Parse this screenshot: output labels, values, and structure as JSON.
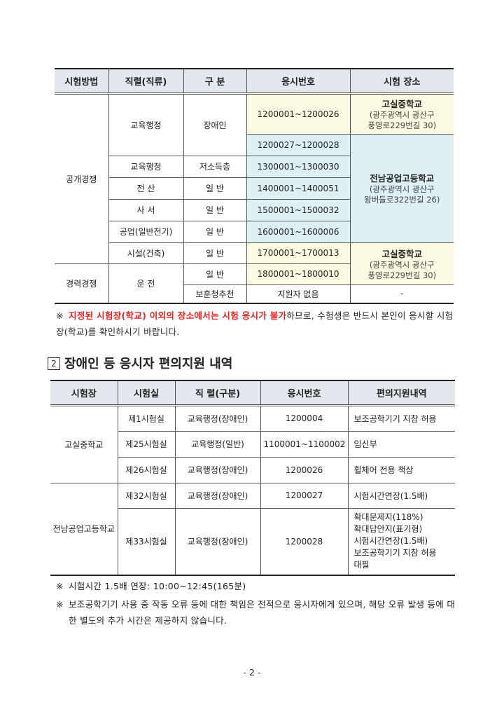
{
  "table1": {
    "headers": [
      "시험방법",
      "직렬(직류)",
      "구 분",
      "응시번호",
      "시험 장소"
    ],
    "method_open": "공개경쟁",
    "method_career": "경력경쟁",
    "rows": [
      {
        "series": "교육행정",
        "category": "장애인",
        "numbers": "1200001~1200026"
      },
      {
        "numbers": "1200027~1200028"
      },
      {
        "series": "교육행정",
        "category": "저소득층",
        "numbers": "1300001~1300030"
      },
      {
        "series": "전 산",
        "category": "일 반",
        "numbers": "1400001~1400051"
      },
      {
        "series": "사 서",
        "category": "일 반",
        "numbers": "1500001~1500032"
      },
      {
        "series": "공업(일반전기)",
        "category": "일 반",
        "numbers": "1600001~1600006"
      },
      {
        "series": "시설(건축)",
        "category": "일 반",
        "numbers": "1700001~1700013"
      },
      {
        "series": "운 전",
        "category": "일 반",
        "numbers": "1800001~1800010"
      },
      {
        "category": "보훈청추천",
        "numbers": "지원자 없음",
        "venue": "-"
      }
    ],
    "venue_gosil": {
      "name": "고실중학교",
      "addr1": "(광주광역시 광산구",
      "addr2": "풍영로229번길 30)"
    },
    "venue_jeonnam": {
      "name": "전남공업고등학교",
      "addr1": "(광주광역시 광산구",
      "addr2": "왕버들로322번길 26)"
    },
    "colors": {
      "header": "#e3e8ef",
      "yellow": "#fdfbe1",
      "cyan": "#ddf0f4"
    }
  },
  "note1": {
    "mark": "※",
    "red": "지정된 시험장(학교) 이외의 장소에서는 시험 응시가 불가",
    "rest": "하므로, 수험생은 반드시 본인이 응시할 시험장(학교)를 확인하시기 바랍니다.",
    "red_color": "#e8201e"
  },
  "section2": {
    "number": "2",
    "title": "장애인 등 응시자 편의지원 내역"
  },
  "table2": {
    "headers": [
      "시험장",
      "시험실",
      "직 렬(구분)",
      "응시번호",
      "편의지원내역"
    ],
    "schools": [
      "고실중학교",
      "전남공업고등학교"
    ],
    "rows": [
      {
        "room": "제1시험실",
        "series": "교육행정(장애인)",
        "number": "1200004",
        "support": [
          "보조공학기기 지참 허용"
        ]
      },
      {
        "room": "제25시험실",
        "series": "교육행정(일반)",
        "number": "1100001~1100002",
        "support": [
          "임신부"
        ]
      },
      {
        "room": "제26시험실",
        "series": "교육행정(장애인)",
        "number": "1200026",
        "support": [
          "휠체어 전용 책상"
        ]
      },
      {
        "room": "제32시험실",
        "series": "교육행정(장애인)",
        "number": "1200027",
        "support": [
          "시험시간연장(1.5배)"
        ]
      },
      {
        "room": "제33시험실",
        "series": "교육행정(장애인)",
        "number": "1200028",
        "support": [
          "확대문제지(118%)",
          "확대답안지(표기형)",
          "시험시간연장(1.5배)",
          "보조공학기기 지참 허용",
          "대필"
        ]
      }
    ]
  },
  "note2": {
    "mark": "※",
    "text": "시험시간 1.5배 연장: 10:00~12:45(165분)"
  },
  "note3": {
    "mark": "※",
    "text": "보조공학기기 사용 중 작동 오류 등에 대한 책임은 전적으로 응시자에게 있으며, 해당 오류 발생 등에 대한 별도의 추가 시간은 제공하지 않습니다."
  },
  "page_number": "- 2 -"
}
